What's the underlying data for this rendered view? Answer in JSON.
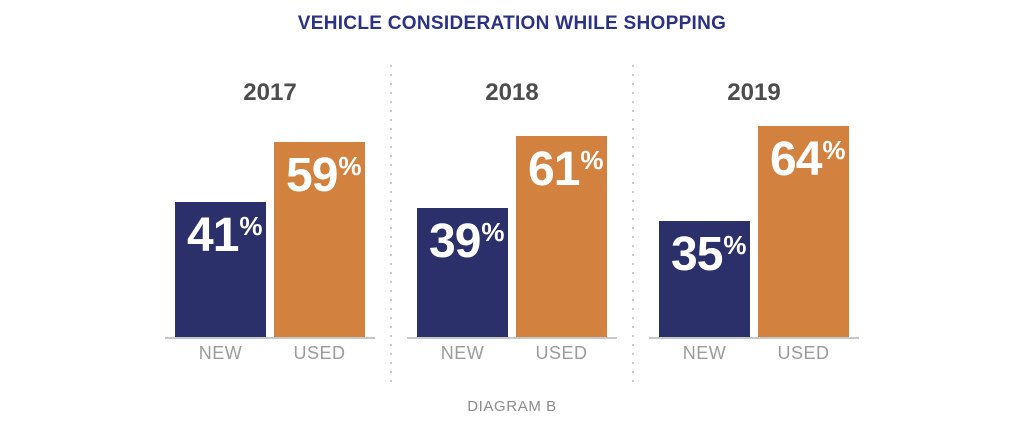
{
  "title": "VEHICLE CONSIDERATION WHILE SHOPPING",
  "caption": "DIAGRAM B",
  "colors": {
    "background": "#FFFFFF",
    "title": "#2B3285",
    "bar_new": "#2B2F6A",
    "bar_used": "#D2813F",
    "value_text": "#FFFFFF",
    "year_label": "#4D4D4D",
    "category_label": "#9B9B9B",
    "baseline": "#C7C7C7",
    "separator": "#C9C9C9",
    "caption": "#8C8C8C"
  },
  "chart_data": {
    "type": "bar",
    "title": "VEHICLE CONSIDERATION WHILE SHOPPING",
    "subtitle": "DIAGRAM B",
    "group_labels": [
      "2017",
      "2018",
      "2019"
    ],
    "categories": [
      "NEW",
      "USED"
    ],
    "series": [
      {
        "name": "NEW",
        "color": "#2B2F6A",
        "values": [
          41,
          39,
          35
        ]
      },
      {
        "name": "USED",
        "color": "#D2813F",
        "values": [
          59,
          61,
          64
        ]
      }
    ],
    "value_suffix": "%",
    "ylim": [
      0,
      100
    ],
    "grid": false,
    "legend": "none",
    "value_labels": "inside-top-left",
    "group_separator_style": "dotted-vertical-line"
  }
}
